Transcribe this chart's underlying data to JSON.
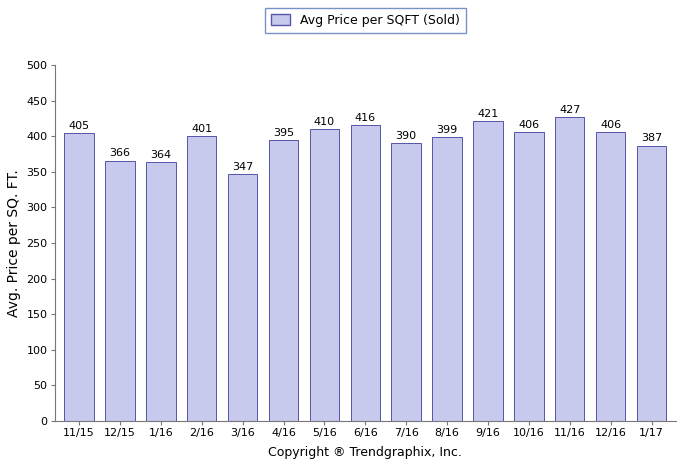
{
  "categories": [
    "11/15",
    "12/15",
    "1/16",
    "2/16",
    "3/16",
    "4/16",
    "5/16",
    "6/16",
    "7/16",
    "8/16",
    "9/16",
    "10/16",
    "11/16",
    "12/16",
    "1/17"
  ],
  "values": [
    405,
    366,
    364,
    401,
    347,
    395,
    410,
    416,
    390,
    399,
    421,
    406,
    427,
    406,
    387
  ],
  "bar_color": "#c8caed",
  "bar_edge_color": "#5555aa",
  "bar_edge_width": 0.7,
  "ylabel": "Avg. Price per SQ. FT.",
  "xlabel": "Copyright ® Trendgraphix, Inc.",
  "ylim": [
    0,
    500
  ],
  "yticks": [
    0,
    50,
    100,
    150,
    200,
    250,
    300,
    350,
    400,
    450,
    500
  ],
  "legend_label": "Avg Price per SQFT (Sold)",
  "legend_box_color": "#c8caed",
  "legend_box_edge_color": "#5555aa",
  "value_label_fontsize": 8,
  "ylabel_fontsize": 10,
  "xlabel_fontsize": 9,
  "tick_fontsize": 8,
  "bar_width": 0.72,
  "legend_fontsize": 9,
  "legend_edge_color": "#5577bb"
}
